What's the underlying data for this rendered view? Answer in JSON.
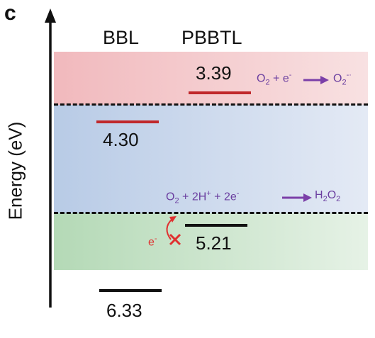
{
  "panel_letter": "c",
  "y_axis_label": "Energy (eV)",
  "columns": {
    "left": "BBL",
    "right": "PBBTL"
  },
  "levels": {
    "pbbtl_lumo": "3.39",
    "bbl_lumo": "4.30",
    "pbbtl_homo": "5.21",
    "bbl_homo": "6.33"
  },
  "reactions": {
    "superoxide": {
      "o2": "O",
      "o2_sub": "2",
      "mid": " + e",
      "mid_sup": "-",
      "product": "O",
      "product_sub": "2",
      "product_sup": "-·"
    },
    "peroxide": {
      "o2": "O",
      "o2_sub": "2",
      "mid": " + 2H",
      "mid_sup": "+",
      "mid2": " + 2e",
      "mid2_sup": "-",
      "product": "H",
      "product_sub1": "2",
      "product2": "O",
      "product_sub2": "2"
    }
  },
  "blocked_electron": {
    "e": "e",
    "sup": "-"
  },
  "colors": {
    "lumo_line": "#c0282b",
    "homo_line": "#111111",
    "reaction_text": "#6b3fa0",
    "reaction_arrow": "#7b3fa8",
    "blocked": "#e03030"
  }
}
